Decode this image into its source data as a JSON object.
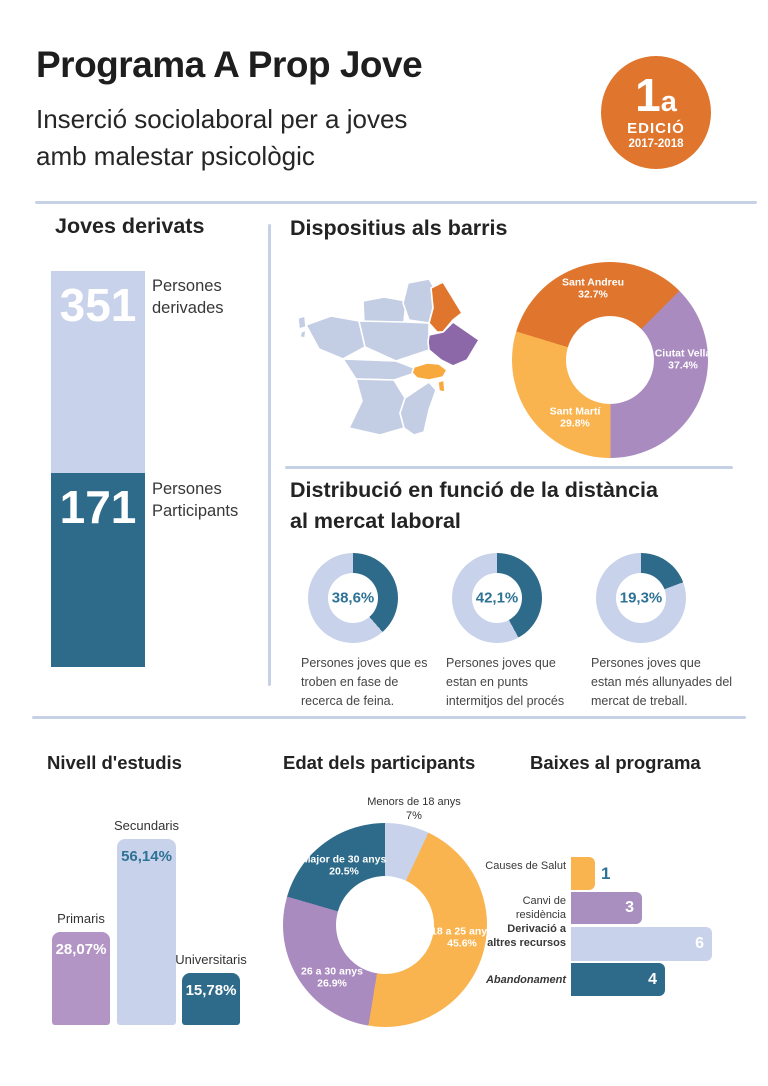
{
  "colors": {
    "teal": "#2e6b8a",
    "teal_text": "#2e7296",
    "light_blue": "#c8d2ea",
    "purple": "#a98bbf",
    "purple_light": "#b295c5",
    "purple_dark": "#8d68a8",
    "orange": "#e0762e",
    "orange_light": "#f9b44f",
    "map_base": "#c3cde4",
    "map_yellow": "#f8a93e",
    "divider": "#c7d1e6"
  },
  "header": {
    "title": "Programa A Prop Jove",
    "subtitle_line1": "Inserció sociolaboral per a joves",
    "subtitle_line2": "amb malestar psicològic",
    "badge": {
      "number": "1",
      "suffix": "a",
      "label": "EDICIÓ",
      "years": "2017-2018"
    }
  },
  "joves_derivats": {
    "title": "Joves derivats",
    "items": [
      {
        "value": "351",
        "label": "Persones derivades"
      },
      {
        "value": "171",
        "label": "Persones Participants"
      }
    ]
  },
  "dispositius": {
    "title": "Dispositius als barris",
    "chart": {
      "start_deg": 45,
      "draw_order": [
        1,
        2,
        0
      ],
      "slices": [
        {
          "label": "Sant Andreu",
          "pct_label": "32.7%",
          "pct": 32.7,
          "color": "#e0762e"
        },
        {
          "label": "Ciutat Vella",
          "pct_label": "37.4%",
          "pct": 37.4,
          "color": "#a98bbf"
        },
        {
          "label": "Sant Martí",
          "pct_label": "29.8%",
          "pct": 29.8,
          "color": "#f9b44f"
        }
      ]
    }
  },
  "distribucio": {
    "title_line1": "Distribució en funció de la distància",
    "title_line2": "al mercat laboral",
    "donuts": [
      {
        "value": "38,6%",
        "pct": 38.6,
        "caption": "Persones joves que es troben en fase de recerca de feina."
      },
      {
        "value": "42,1%",
        "pct": 42.1,
        "caption": "Persones joves que estan en punts intermitjos del procés"
      },
      {
        "value": "19,3%",
        "pct": 19.3,
        "caption": "Persones joves que estan més allunyades del mercat de treball."
      }
    ]
  },
  "nivell_estudis": {
    "title": "Nivell d'estudis",
    "bars": [
      {
        "label": "Primaris",
        "value": "28,07%",
        "pct": 28.07,
        "color": "#b295c5",
        "value_color": "#ffffff"
      },
      {
        "label": "Secundaris",
        "value": "56,14%",
        "pct": 56.14,
        "color": "#c8d2ea",
        "value_color": "#2e7296"
      },
      {
        "label": "Universitaris",
        "value": "15,78%",
        "pct": 15.78,
        "color": "#2e6b8a",
        "value_color": "#ffffff"
      }
    ]
  },
  "edat": {
    "title": "Edat dels participants",
    "chart": {
      "start_deg": 0,
      "draw_order": [
        0,
        1,
        2,
        3
      ],
      "slices": [
        {
          "label": "Menors de 18 anys",
          "pct_label": "7%",
          "pct": 7,
          "color": "#c8d2ea"
        },
        {
          "label": "18 a 25 anys",
          "pct_label": "45.6%",
          "pct": 45.6,
          "color": "#f9b44f"
        },
        {
          "label": "26 a 30 anys",
          "pct_label": "26.9%",
          "pct": 26.9,
          "color": "#a98bbf"
        },
        {
          "label": "Major de 30 anys",
          "pct_label": "20.5%",
          "pct": 20.5,
          "color": "#2e6b8a"
        }
      ]
    }
  },
  "baixes": {
    "title": "Baixes al programa",
    "rows": [
      {
        "label": "Causes de Salut",
        "value": 1,
        "value_text": "1",
        "color": "#f9b44f",
        "value_outside": true
      },
      {
        "label": "Canvi de residència",
        "value": 3,
        "value_text": "3",
        "color": "#a88fc0",
        "value_outside": false
      },
      {
        "label": "Derivació a altres recursos",
        "value": 6,
        "value_text": "6",
        "color": "#c8d2ea",
        "value_outside": false
      },
      {
        "label": "Abandonament",
        "value": 4,
        "value_text": "4",
        "color": "#2e6b8a",
        "value_outside": false
      }
    ]
  },
  "chart_data": [
    {
      "type": "bar",
      "title": "Joves derivats",
      "categories": [
        "Persones derivades",
        "Persones Participants"
      ],
      "values": [
        351,
        171
      ]
    },
    {
      "type": "pie",
      "title": "Dispositius als barris",
      "categories": [
        "Sant Andreu",
        "Ciutat Vella",
        "Sant Martí"
      ],
      "values": [
        32.7,
        37.4,
        29.8
      ]
    },
    {
      "type": "pie",
      "title": "Distribució en funció de la distància al mercat laboral — donut 1",
      "categories": [
        "Persones joves que es troben en fase de recerca de feina.",
        "resta"
      ],
      "values": [
        38.6,
        61.4
      ]
    },
    {
      "type": "pie",
      "title": "Distribució en funció de la distància al mercat laboral — donut 2",
      "categories": [
        "Persones joves que estan en punts intermitjos del procés",
        "resta"
      ],
      "values": [
        42.1,
        57.9
      ]
    },
    {
      "type": "pie",
      "title": "Distribució en funció de la distància al mercat laboral — donut 3",
      "categories": [
        "Persones joves que estan més allunyades del mercat de treball.",
        "resta"
      ],
      "values": [
        19.3,
        80.7
      ]
    },
    {
      "type": "bar",
      "title": "Nivell d'estudis",
      "categories": [
        "Primaris",
        "Secundaris",
        "Universitaris"
      ],
      "values": [
        28.07,
        56.14,
        15.78
      ]
    },
    {
      "type": "pie",
      "title": "Edat dels participants",
      "categories": [
        "Menors de 18 anys",
        "18 a 25 anys",
        "26 a 30 anys",
        "Major de 30 anys"
      ],
      "values": [
        7,
        45.6,
        26.9,
        20.5
      ]
    },
    {
      "type": "bar",
      "title": "Baixes al programa",
      "orientation": "horizontal",
      "categories": [
        "Causes de Salut",
        "Canvi de residència",
        "Derivació a altres recursos",
        "Abandonament"
      ],
      "values": [
        1,
        3,
        6,
        4
      ]
    }
  ]
}
